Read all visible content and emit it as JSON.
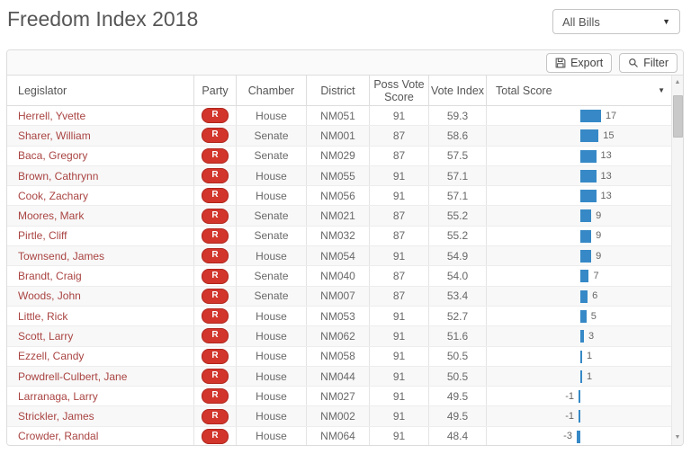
{
  "page": {
    "title": "Freedom Index 2018"
  },
  "toolbar": {
    "bills_filter_value": "All Bills",
    "export_label": "Export",
    "filter_label": "Filter"
  },
  "colors": {
    "bar_blue": "#3689c6",
    "party_badge_red": "#d2352b",
    "legislator_link_red": "#a94442"
  },
  "table": {
    "columns": [
      {
        "key": "name",
        "label": "Legislator"
      },
      {
        "key": "party",
        "label": "Party"
      },
      {
        "key": "chamber",
        "label": "Chamber"
      },
      {
        "key": "district",
        "label": "District"
      },
      {
        "key": "poss_vote_score",
        "label": "Poss Vote Score"
      },
      {
        "key": "vote_index",
        "label": "Vote Index"
      },
      {
        "key": "total_score",
        "label": "Total Score"
      }
    ],
    "rows": [
      {
        "name": "Herrell, Yvette",
        "party": "R",
        "chamber": "House",
        "district": "NM051",
        "poss_vote_score": "91",
        "vote_index": "59.3",
        "total_score": 17
      },
      {
        "name": "Sharer, William",
        "party": "R",
        "chamber": "Senate",
        "district": "NM001",
        "poss_vote_score": "87",
        "vote_index": "58.6",
        "total_score": 15
      },
      {
        "name": "Baca, Gregory",
        "party": "R",
        "chamber": "Senate",
        "district": "NM029",
        "poss_vote_score": "87",
        "vote_index": "57.5",
        "total_score": 13
      },
      {
        "name": "Brown, Cathrynn",
        "party": "R",
        "chamber": "House",
        "district": "NM055",
        "poss_vote_score": "91",
        "vote_index": "57.1",
        "total_score": 13
      },
      {
        "name": "Cook, Zachary",
        "party": "R",
        "chamber": "House",
        "district": "NM056",
        "poss_vote_score": "91",
        "vote_index": "57.1",
        "total_score": 13
      },
      {
        "name": "Moores, Mark",
        "party": "R",
        "chamber": "Senate",
        "district": "NM021",
        "poss_vote_score": "87",
        "vote_index": "55.2",
        "total_score": 9
      },
      {
        "name": "Pirtle, Cliff",
        "party": "R",
        "chamber": "Senate",
        "district": "NM032",
        "poss_vote_score": "87",
        "vote_index": "55.2",
        "total_score": 9
      },
      {
        "name": "Townsend, James",
        "party": "R",
        "chamber": "House",
        "district": "NM054",
        "poss_vote_score": "91",
        "vote_index": "54.9",
        "total_score": 9
      },
      {
        "name": "Brandt, Craig",
        "party": "R",
        "chamber": "Senate",
        "district": "NM040",
        "poss_vote_score": "87",
        "vote_index": "54.0",
        "total_score": 7
      },
      {
        "name": "Woods, John",
        "party": "R",
        "chamber": "Senate",
        "district": "NM007",
        "poss_vote_score": "87",
        "vote_index": "53.4",
        "total_score": 6
      },
      {
        "name": "Little, Rick",
        "party": "R",
        "chamber": "House",
        "district": "NM053",
        "poss_vote_score": "91",
        "vote_index": "52.7",
        "total_score": 5
      },
      {
        "name": "Scott, Larry",
        "party": "R",
        "chamber": "House",
        "district": "NM062",
        "poss_vote_score": "91",
        "vote_index": "51.6",
        "total_score": 3
      },
      {
        "name": "Ezzell, Candy",
        "party": "R",
        "chamber": "House",
        "district": "NM058",
        "poss_vote_score": "91",
        "vote_index": "50.5",
        "total_score": 1
      },
      {
        "name": "Powdrell-Culbert, Jane",
        "party": "R",
        "chamber": "House",
        "district": "NM044",
        "poss_vote_score": "91",
        "vote_index": "50.5",
        "total_score": 1
      },
      {
        "name": "Larranaga, Larry",
        "party": "R",
        "chamber": "House",
        "district": "NM027",
        "poss_vote_score": "91",
        "vote_index": "49.5",
        "total_score": -1
      },
      {
        "name": "Strickler, James",
        "party": "R",
        "chamber": "House",
        "district": "NM002",
        "poss_vote_score": "91",
        "vote_index": "49.5",
        "total_score": -1
      },
      {
        "name": "Crowder, Randal",
        "party": "R",
        "chamber": "House",
        "district": "NM064",
        "poss_vote_score": "91",
        "vote_index": "48.4",
        "total_score": -3
      }
    ]
  }
}
